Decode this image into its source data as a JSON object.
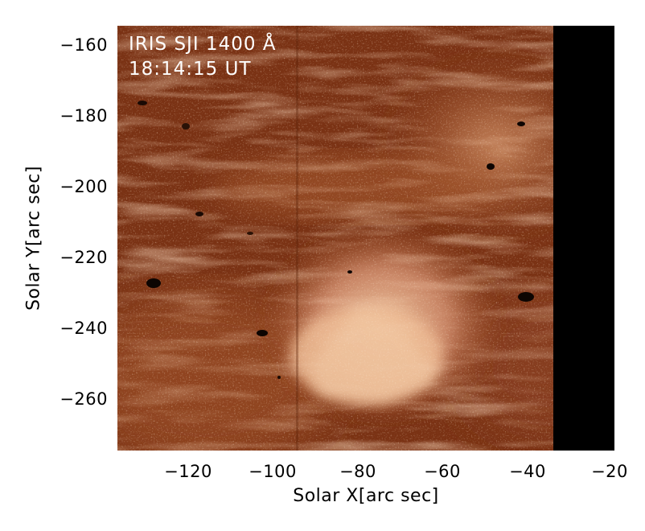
{
  "image": {
    "overlay_line_1": "IRIS SJI 1400 Å",
    "overlay_line_2": "18:14:15 UT",
    "colors": {
      "background_dark": "#6f2a0e",
      "background_mid": "#a0522a",
      "bright_region": "#e9b890",
      "brightest": "#f2c9a4",
      "masked_strip": "#000000",
      "axis": "#000000"
    },
    "colormap": "IRIS SJI 1400 (red-brown)"
  },
  "axes": {
    "x_label": "Solar X[arc sec]",
    "y_label": "Solar Y[arc sec]",
    "x_ticks": [
      "−120",
      "−100",
      "−80",
      "−60",
      "−40",
      "−20"
    ],
    "y_ticks": [
      "−160",
      "−180",
      "−200",
      "−220",
      "−240",
      "−260"
    ],
    "x_range": [
      -137,
      -20
    ],
    "y_range": [
      -272,
      -152
    ]
  }
}
